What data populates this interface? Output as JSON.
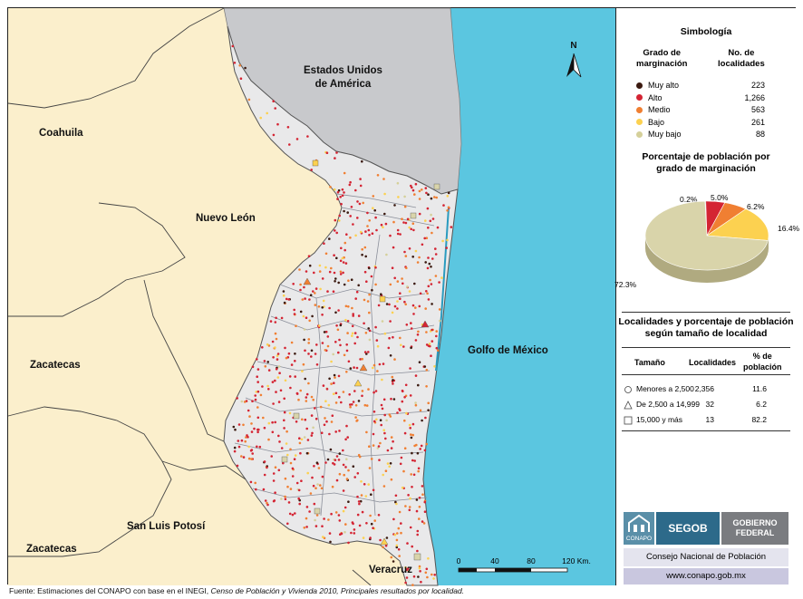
{
  "map": {
    "places": {
      "usa": "Estados Unidos\nde América",
      "coahuila": "Coahuila",
      "nuevo_leon": "Nuevo León",
      "zacatecas_1": "Zacatecas",
      "zacatecas_2": "Zacatecas",
      "slp": "San Luis Potosí",
      "veracruz": "Veracruz",
      "golfo": "Golfo de México"
    },
    "north": "N",
    "scale": {
      "ticks": [
        "0",
        "40",
        "80",
        "120 Km."
      ]
    }
  },
  "legend": {
    "title": "Simbología",
    "col1": "Grado de\nmarginación",
    "col2": "No. de\nlocalidades",
    "rows": [
      {
        "label": "Muy alto",
        "value": "223",
        "color": "#3b1a10"
      },
      {
        "label": "Alto",
        "value": "1,266",
        "color": "#d42433"
      },
      {
        "label": "Medio",
        "value": "563",
        "color": "#f07f32"
      },
      {
        "label": "Bajo",
        "value": "261",
        "color": "#fcd150"
      },
      {
        "label": "Muy bajo",
        "value": "88",
        "color": "#d5d09a"
      }
    ]
  },
  "pie": {
    "title": "Porcentaje de población por\ngrado de marginación",
    "slices": [
      {
        "label": "0.2%",
        "value": 0.2,
        "color": "#3b1a10"
      },
      {
        "label": "5.0%",
        "value": 5.0,
        "color": "#d42433"
      },
      {
        "label": "6.2%",
        "value": 6.2,
        "color": "#f07f32"
      },
      {
        "label": "16.4%",
        "value": 16.4,
        "color": "#fcd150"
      },
      {
        "label": "72.3%",
        "value": 72.3,
        "color": "#d9d4aa"
      }
    ]
  },
  "size_table": {
    "title": "Localidades y porcentaje de población\nsegún tamaño de localidad",
    "headers": [
      "Tamaño",
      "Localidades",
      "% de\npoblación"
    ],
    "rows": [
      {
        "size": "Menores a 2,500",
        "loc": "2,356",
        "pct": "11.6"
      },
      {
        "size": "De 2,500 a 14,999",
        "loc": "32",
        "pct": "6.2"
      },
      {
        "size": "15,000 y más",
        "loc": "13",
        "pct": "82.2"
      }
    ]
  },
  "logos": {
    "conapo": "CONAPO",
    "segob": "SEGOB",
    "gobierno": "Gobierno\nFederal",
    "consejo": "Consejo Nacional de Población",
    "web": "www.conapo.gob.mx"
  },
  "footer": {
    "prefix": "Fuente: Estimaciones del CONAPO con base en el INEGI, ",
    "italic": "Censo de Población y Vivienda 2010, Principales resultados por localidad."
  }
}
